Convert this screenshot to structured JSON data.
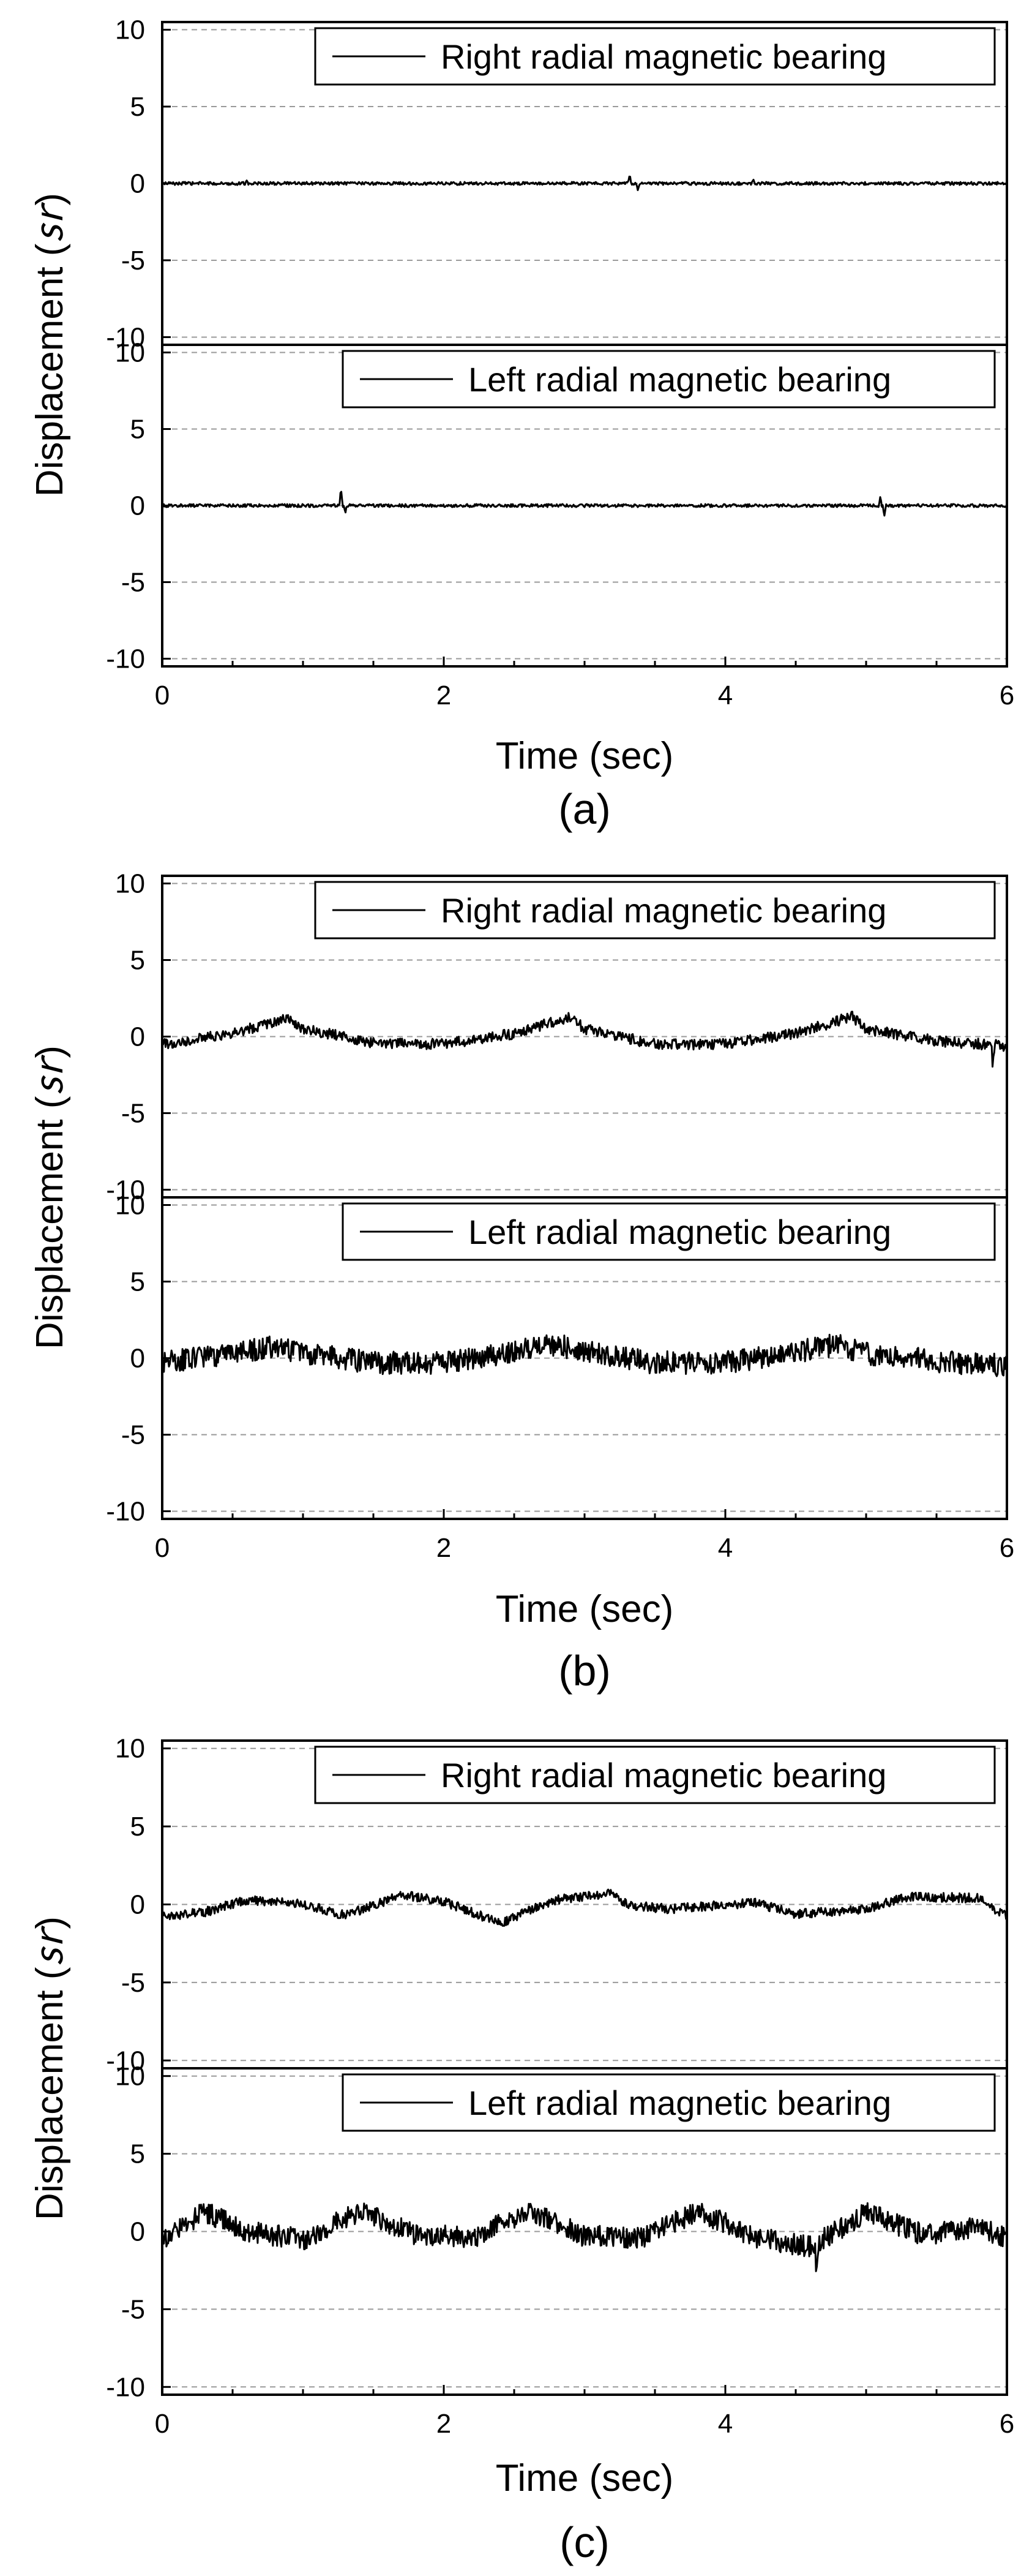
{
  "figure": {
    "ylabel_text": "Displacement (",
    "ylabel_unit": "㏛",
    "ylabel_close": ")"
  },
  "chart_data": [
    {
      "panel": "(a)",
      "type": "line",
      "xlabel": "Time (sec)",
      "ylabel": "Displacement (㏛)",
      "xlim": [
        0,
        6
      ],
      "x_ticks": [
        0,
        2,
        4,
        6
      ],
      "grid": "horizontal-dashed",
      "subplots": [
        {
          "legend": "Right radial magnetic bearing",
          "legend_position": "top-right",
          "ylim": [
            -10.5,
            10.5
          ],
          "y_ticks": [
            10,
            5,
            0,
            -5,
            -10
          ],
          "trend": [],
          "noise_amplitude": 0.1,
          "spikes": [
            {
              "x": 0.6,
              "y": 0.2
            },
            {
              "x": 3.32,
              "y": 0.6
            },
            {
              "x": 3.38,
              "y": -0.5
            },
            {
              "x": 4.2,
              "y": 0.3
            }
          ]
        },
        {
          "legend": "Left radial magnetic bearing",
          "legend_position": "top-right",
          "ylim": [
            -10.5,
            10.5
          ],
          "y_ticks": [
            10,
            5,
            0,
            -5,
            -10
          ],
          "trend": [],
          "noise_amplitude": 0.1,
          "spikes": [
            {
              "x": 1.27,
              "y": 1.1
            },
            {
              "x": 1.3,
              "y": -0.5
            },
            {
              "x": 5.1,
              "y": 0.5
            },
            {
              "x": 5.13,
              "y": -0.6
            }
          ]
        }
      ]
    },
    {
      "panel": "(b)",
      "type": "line",
      "xlabel": "Time (sec)",
      "ylabel": "Displacement (㏛)",
      "xlim": [
        0,
        6
      ],
      "x_ticks": [
        0,
        2,
        4,
        6
      ],
      "grid": "horizontal-dashed",
      "subplots": [
        {
          "legend": "Right radial magnetic bearing",
          "legend_position": "top-right",
          "ylim": [
            -10.5,
            10.5
          ],
          "y_ticks": [
            10,
            5,
            0,
            -5,
            -10
          ],
          "trend": [
            [
              0,
              -0.5
            ],
            [
              0.5,
              0.2
            ],
            [
              0.9,
              1.2
            ],
            [
              1.0,
              0.5
            ],
            [
              1.5,
              -0.4
            ],
            [
              2.0,
              -0.5
            ],
            [
              2.5,
              0.2
            ],
            [
              2.9,
              1.3
            ],
            [
              3.0,
              0.5
            ],
            [
              3.5,
              -0.5
            ],
            [
              4.0,
              -0.5
            ],
            [
              4.5,
              0.2
            ],
            [
              4.9,
              1.3
            ],
            [
              5.0,
              0.5
            ],
            [
              5.5,
              -0.3
            ],
            [
              6.0,
              -0.6
            ]
          ],
          "noise_amplitude": 0.35,
          "spikes": [
            {
              "x": 5.9,
              "y": -1.3
            }
          ]
        },
        {
          "legend": "Left radial magnetic bearing",
          "legend_position": "top-right",
          "ylim": [
            -10.5,
            10.5
          ],
          "y_ticks": [
            10,
            5,
            0,
            -5,
            -10
          ],
          "trend": [
            [
              0,
              -0.3
            ],
            [
              0.5,
              0.3
            ],
            [
              0.8,
              0.8
            ],
            [
              1.0,
              0.3
            ],
            [
              1.5,
              -0.3
            ],
            [
              2.0,
              -0.3
            ],
            [
              2.5,
              0.4
            ],
            [
              2.8,
              0.9
            ],
            [
              3.0,
              0.4
            ],
            [
              3.5,
              -0.3
            ],
            [
              4.0,
              -0.3
            ],
            [
              4.5,
              0.4
            ],
            [
              4.8,
              0.9
            ],
            [
              5.0,
              0.3
            ],
            [
              5.5,
              -0.2
            ],
            [
              6.0,
              -0.5
            ]
          ],
          "noise_amplitude": 0.75,
          "spikes": []
        }
      ]
    },
    {
      "panel": "(c)",
      "type": "line",
      "xlabel": "Time (sec)",
      "ylabel": "Displacement (㏛)",
      "xlim": [
        0,
        6
      ],
      "x_ticks": [
        0,
        2,
        4,
        6
      ],
      "grid": "horizontal-dashed",
      "subplots": [
        {
          "legend": "Right radial magnetic bearing",
          "legend_position": "top-right",
          "ylim": [
            -10.5,
            10.5
          ],
          "y_ticks": [
            10,
            5,
            0,
            -5,
            -10
          ],
          "trend": [
            [
              0,
              -0.8
            ],
            [
              0.3,
              -0.5
            ],
            [
              0.6,
              0.3
            ],
            [
              1.0,
              0.0
            ],
            [
              1.3,
              -0.7
            ],
            [
              1.7,
              0.6
            ],
            [
              2.0,
              0.2
            ],
            [
              2.4,
              -1.2
            ],
            [
              2.8,
              0.3
            ],
            [
              3.2,
              0.7
            ],
            [
              3.3,
              0.0
            ],
            [
              3.6,
              -0.3
            ],
            [
              4.2,
              0.1
            ],
            [
              4.5,
              -0.6
            ],
            [
              5.0,
              -0.3
            ],
            [
              5.3,
              0.5
            ],
            [
              5.8,
              0.4
            ],
            [
              6.0,
              -0.8
            ]
          ],
          "noise_amplitude": 0.3,
          "spikes": []
        },
        {
          "legend": "Left radial magnetic bearing",
          "legend_position": "top-right",
          "ylim": [
            -10.5,
            10.5
          ],
          "y_ticks": [
            10,
            5,
            0,
            -5,
            -10
          ],
          "trend": [
            [
              0,
              -0.5
            ],
            [
              0.3,
              1.3
            ],
            [
              0.6,
              0.0
            ],
            [
              1.0,
              -0.5
            ],
            [
              1.4,
              1.3
            ],
            [
              1.8,
              -0.2
            ],
            [
              2.2,
              -0.4
            ],
            [
              2.6,
              1.3
            ],
            [
              3.0,
              -0.3
            ],
            [
              3.4,
              -0.4
            ],
            [
              3.8,
              1.3
            ],
            [
              4.2,
              -0.3
            ],
            [
              4.6,
              -1.0
            ],
            [
              5.0,
              1.2
            ],
            [
              5.4,
              -0.2
            ],
            [
              5.8,
              0.3
            ],
            [
              6.0,
              -0.4
            ]
          ],
          "noise_amplitude": 0.7,
          "spikes": [
            {
              "x": 4.65,
              "y": -2.2
            }
          ]
        }
      ]
    }
  ]
}
